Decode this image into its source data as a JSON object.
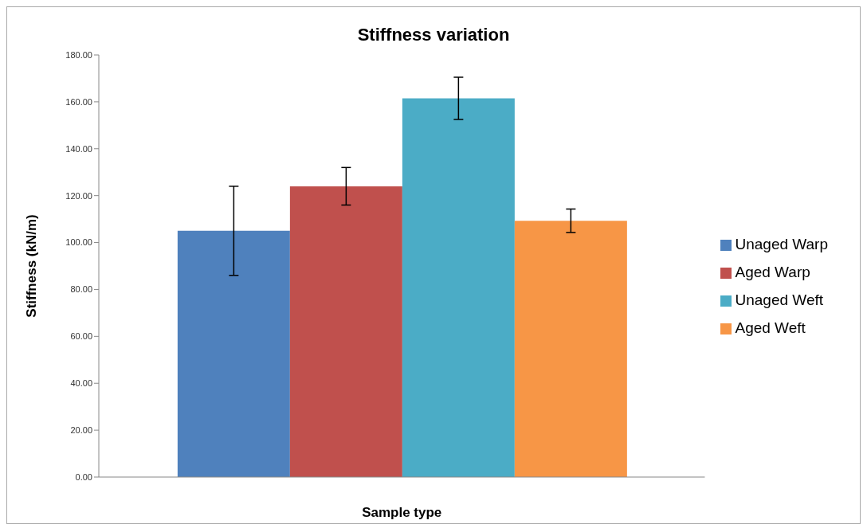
{
  "chart_data": {
    "type": "bar",
    "title": "Stiffness variation",
    "xlabel": "Sample type",
    "ylabel": "Stiffness (kN/m)",
    "categories": [
      null
    ],
    "series": [
      {
        "name": "Unaged Warp",
        "color": "#4f81bd",
        "values": [
          105
        ],
        "errors": [
          19
        ]
      },
      {
        "name": "Aged Warp",
        "color": "#c0504d",
        "values": [
          124
        ],
        "errors": [
          8
        ]
      },
      {
        "name": "Unaged Weft",
        "color": "#4bacc6",
        "values": [
          161.5
        ],
        "errors": [
          9
        ]
      },
      {
        "name": "Aged Weft",
        "color": "#f79646",
        "values": [
          109.3
        ],
        "errors": [
          5
        ]
      }
    ],
    "ylim": [
      0,
      180
    ],
    "yticks": [
      {
        "value": 0,
        "label": "0.00"
      },
      {
        "value": 20,
        "label": "20.00"
      },
      {
        "value": 40,
        "label": "40.00"
      },
      {
        "value": 60,
        "label": "60.00"
      },
      {
        "value": 80,
        "label": "80.00"
      },
      {
        "value": 100,
        "label": "100.00"
      },
      {
        "value": 120,
        "label": "120.00"
      },
      {
        "value": 140,
        "label": "140.00"
      },
      {
        "value": 160,
        "label": "160.00"
      },
      {
        "value": 180,
        "label": "180.00"
      }
    ],
    "grid": false,
    "legend": "right"
  }
}
